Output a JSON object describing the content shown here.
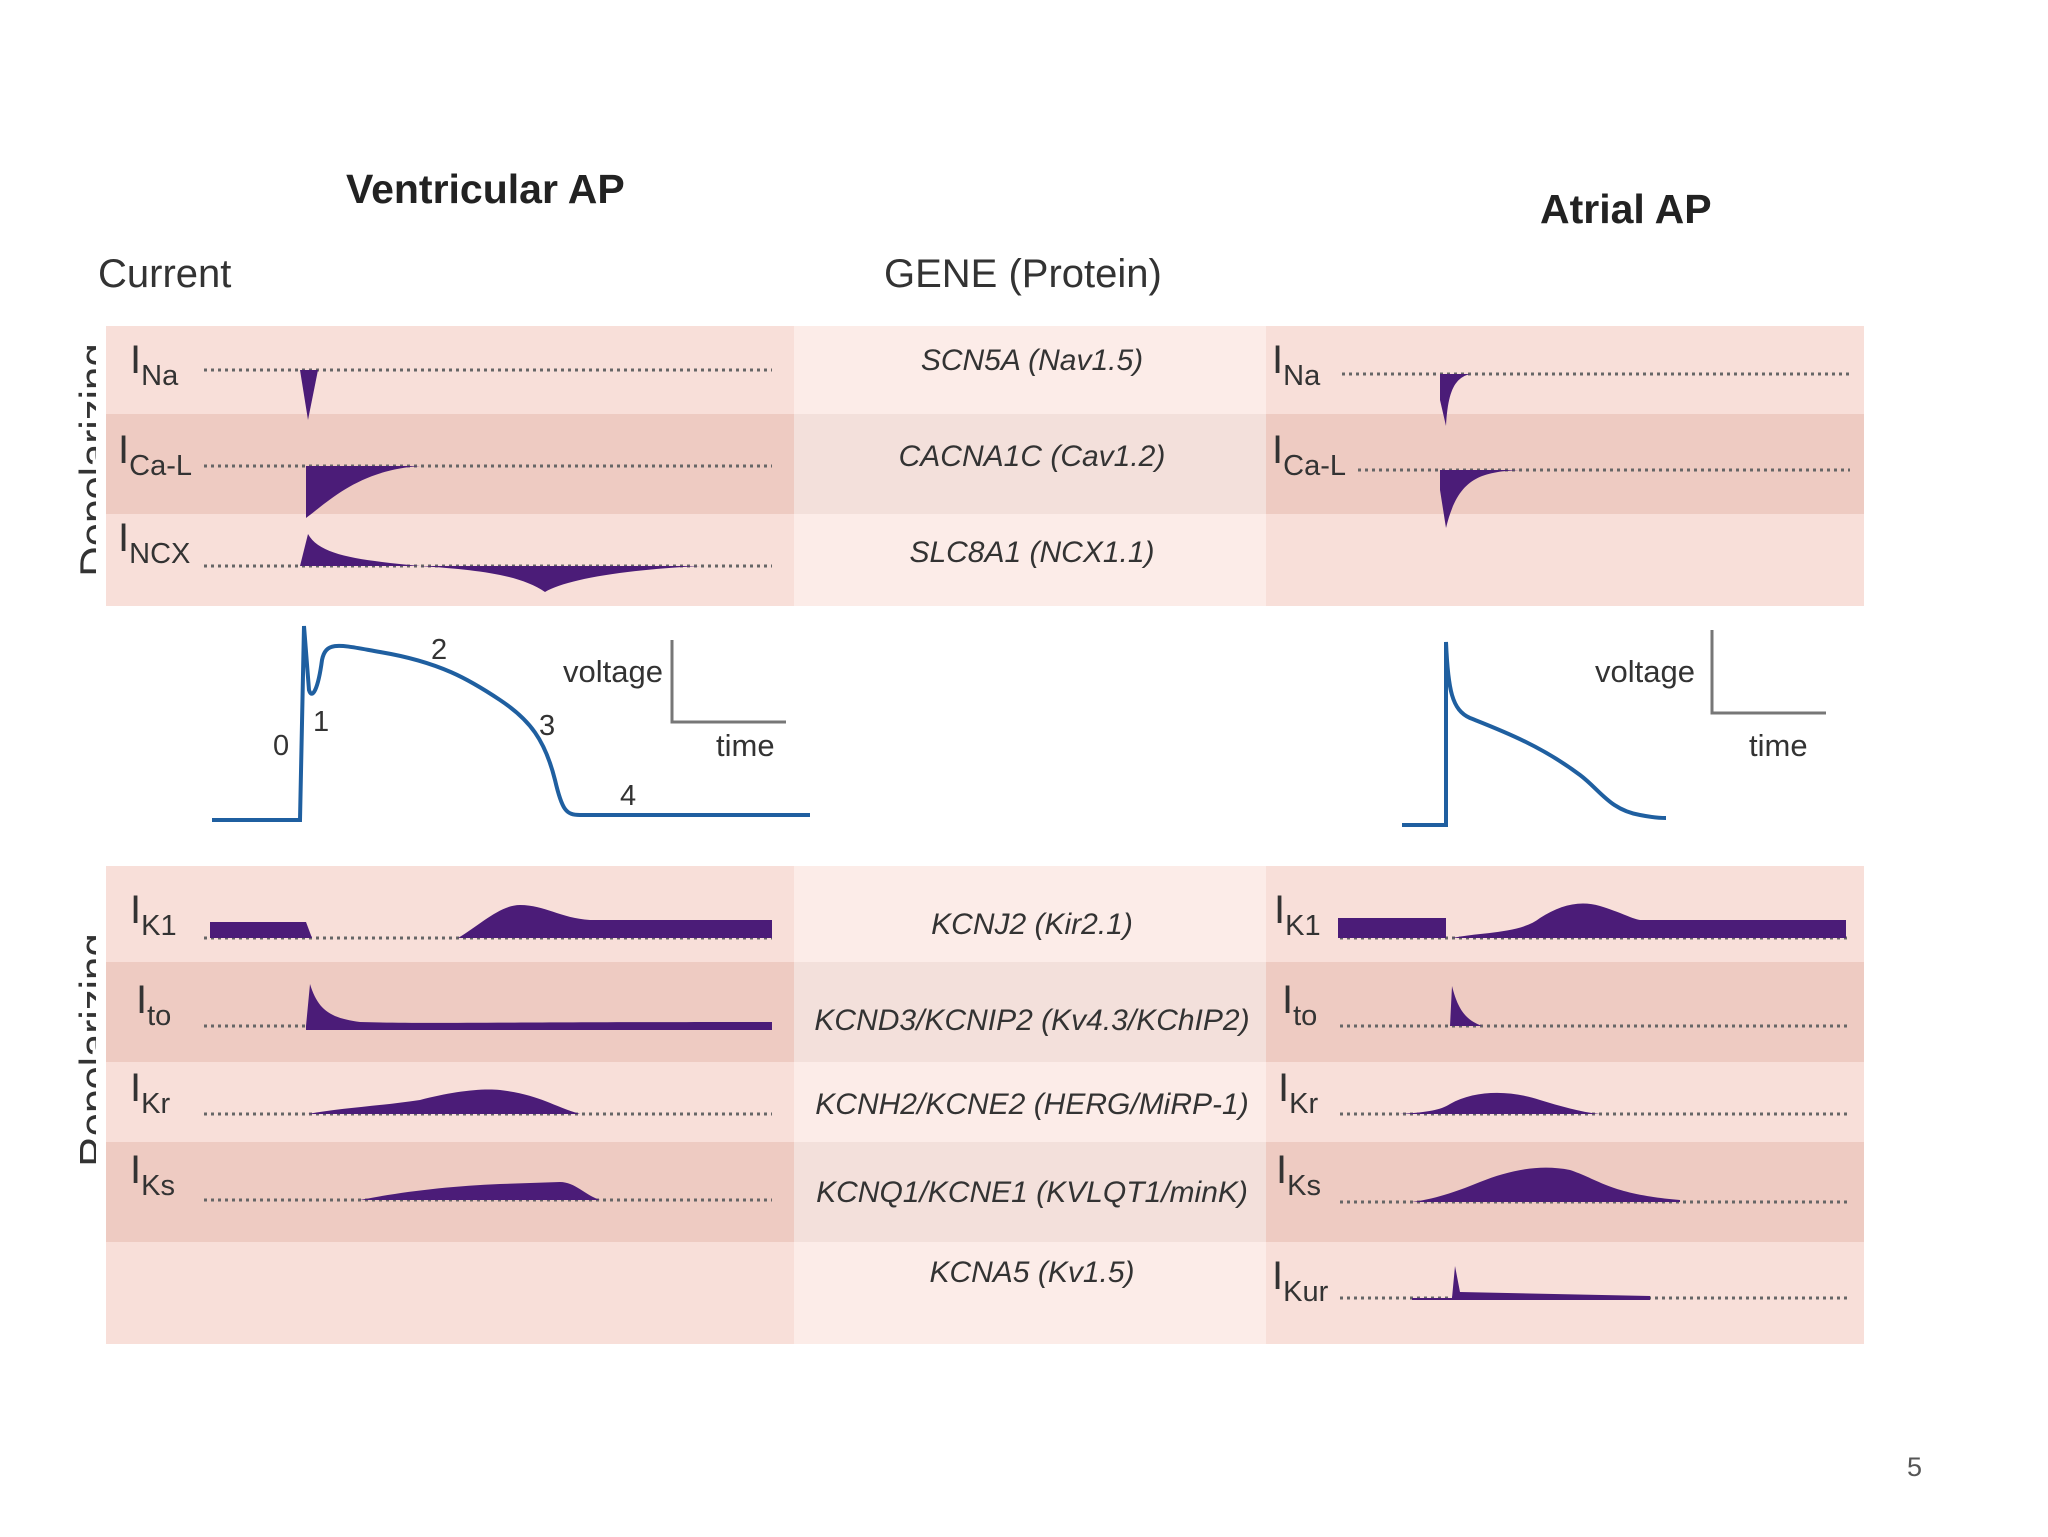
{
  "headings": {
    "ventricular": "Ventricular AP",
    "atrial": "Atrial AP",
    "current": "Current",
    "gene": "GENE (Protein)"
  },
  "side_labels": {
    "depolarizing": "Depolarizing",
    "repolarizing": "Repolarizing"
  },
  "depolarizing_rows": [
    {
      "current": "I",
      "sub": "Na",
      "gene": "SCN5A (Nav1.5)",
      "atrial": true
    },
    {
      "current": "I",
      "sub": "Ca-L",
      "gene": "CACNA1C (Cav1.2)",
      "atrial": true
    },
    {
      "current": "I",
      "sub": "NCX",
      "gene": "SLC8A1 (NCX1.1)",
      "atrial": false
    }
  ],
  "repolarizing_rows": [
    {
      "current": "I",
      "sub": "K1",
      "gene": "KCNJ2 (Kir2.1)",
      "ventricular": true
    },
    {
      "current": "I",
      "sub": "to",
      "gene": "KCND3/KCNIP2  (Kv4.3/KChIP2)",
      "ventricular": true
    },
    {
      "current": "I",
      "sub": "Kr",
      "gene": "KCNH2/KCNE2 (HERG/MiRP-1)",
      "ventricular": true
    },
    {
      "current": "I",
      "sub": "Ks",
      "gene": "KCNQ1/KCNE1 (KVLQT1/minK)",
      "ventricular": true
    },
    {
      "current": "I",
      "sub": "Kur",
      "gene": "KCNA5 (Kv1.5)",
      "ventricular": false
    }
  ],
  "ap_phases": [
    "0",
    "1",
    "2",
    "3",
    "4"
  ],
  "scale_bar": {
    "voltage": "voltage",
    "time": "time"
  },
  "page_number": "5",
  "colors": {
    "band_light": "#f8dfd9",
    "band_dark": "#eecbc2",
    "gene_light": "#fcece8",
    "gene_dark": "#f3e0db",
    "trace": "#4b1c78",
    "ap_line": "#1f5fa0"
  }
}
